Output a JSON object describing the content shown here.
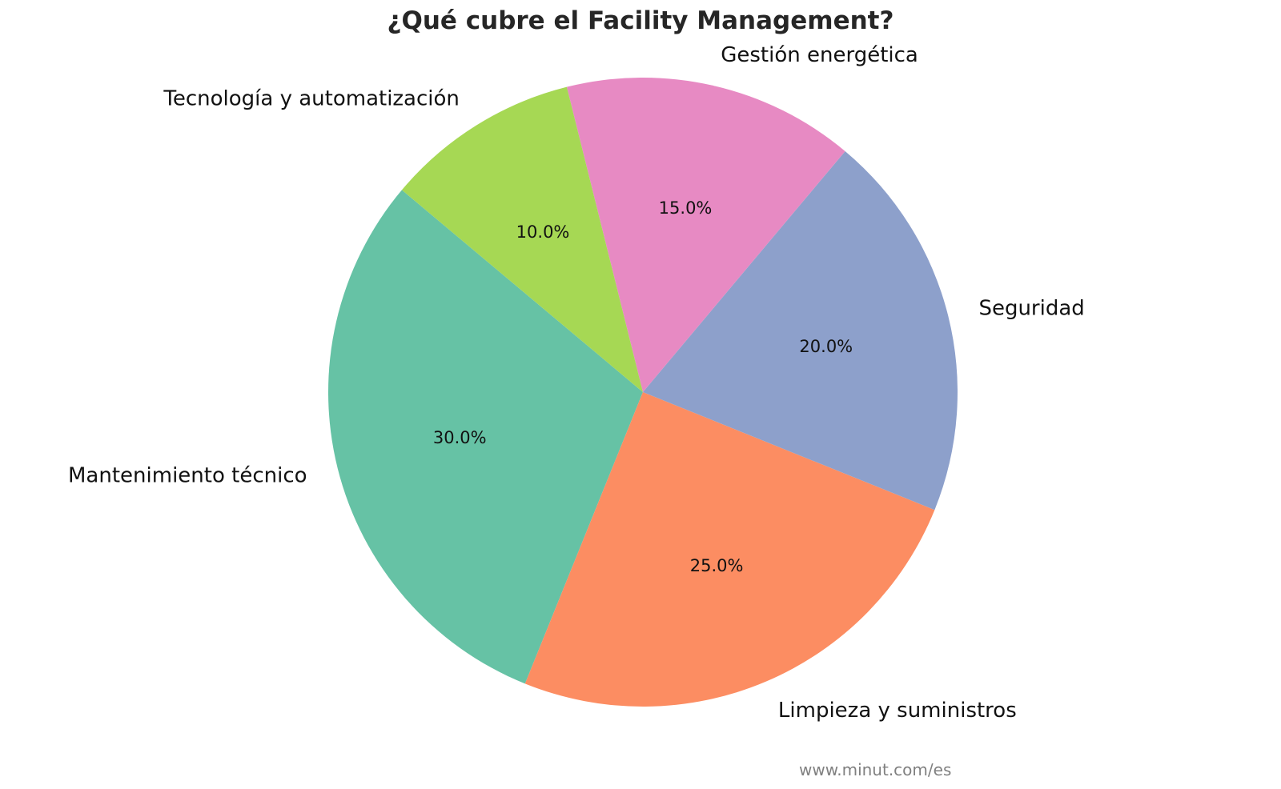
{
  "chart_data": {
    "type": "pie",
    "title": "¿Qué cubre el Facility Management?",
    "slices": [
      {
        "label": "Mantenimiento técnico",
        "value": 30.0,
        "pct_label": "30.0%",
        "color": "#66c2a5"
      },
      {
        "label": "Limpieza y suministros",
        "value": 25.0,
        "pct_label": "25.0%",
        "color": "#fc8d62"
      },
      {
        "label": "Seguridad",
        "value": 20.0,
        "pct_label": "20.0%",
        "color": "#8da0cb"
      },
      {
        "label": "Gestión energética",
        "value": 15.0,
        "pct_label": "15.0%",
        "color": "#e78ac3"
      },
      {
        "label": "Tecnología y automatización",
        "value": 10.0,
        "pct_label": "10.0%",
        "color": "#a6d854"
      }
    ],
    "start_angle_deg": 140,
    "direction": "counterclockwise"
  },
  "watermark": "www.minut.com/es"
}
